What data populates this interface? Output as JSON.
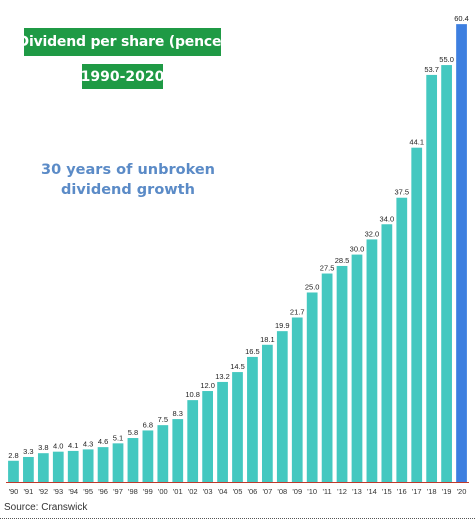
{
  "chart_data": {
    "type": "bar",
    "title": "Dividend per share (pence)",
    "subtitle": "1990-2020",
    "annotation": [
      "30 years of unbroken",
      "dividend growth"
    ],
    "source": "Source: Cranswick",
    "categories": [
      "'90",
      "'91",
      "'92",
      "'93",
      "'94",
      "'95",
      "'96",
      "'97",
      "'98",
      "'99",
      "'00",
      "'01",
      "'02",
      "'03",
      "'04",
      "'05",
      "'06",
      "'07",
      "'08",
      "'09",
      "'10",
      "'11",
      "'12",
      "'13",
      "'14",
      "'15",
      "'16",
      "'17",
      "'18",
      "'19",
      "'20"
    ],
    "values": [
      2.8,
      3.3,
      3.8,
      4.0,
      4.1,
      4.3,
      4.6,
      5.1,
      5.8,
      6.8,
      7.5,
      8.3,
      10.8,
      12.0,
      13.2,
      14.5,
      16.5,
      18.1,
      19.9,
      21.7,
      25.0,
      27.5,
      28.5,
      30.0,
      32.0,
      34.0,
      37.5,
      44.1,
      53.7,
      55.0,
      60.4
    ],
    "value_labels": [
      "2.8",
      "3.3",
      "3.8",
      "4.0",
      "4.1",
      "4.3",
      "4.6",
      "5.1",
      "5.8",
      "6.8",
      "7.5",
      "8.3",
      "10.8",
      "12.0",
      "13.2",
      "14.5",
      "16.5",
      "18.1",
      "19.9",
      "21.7",
      "25.0",
      "27.5",
      "28.5",
      "30.0",
      "32.0",
      "34.0",
      "37.5",
      "44.1",
      "53.7",
      "55.0",
      "60.4"
    ],
    "xlabel": "",
    "ylabel": "",
    "ylim": [
      0,
      62
    ],
    "grid": false,
    "legend": "none",
    "highlight_last": true
  },
  "colors": {
    "bar": "#44c8c0",
    "bar_highlight": "#3d7fe0",
    "title_bg": "#1f9a45",
    "annotation": "#5b8bc7",
    "baseline": "#c0392b"
  }
}
